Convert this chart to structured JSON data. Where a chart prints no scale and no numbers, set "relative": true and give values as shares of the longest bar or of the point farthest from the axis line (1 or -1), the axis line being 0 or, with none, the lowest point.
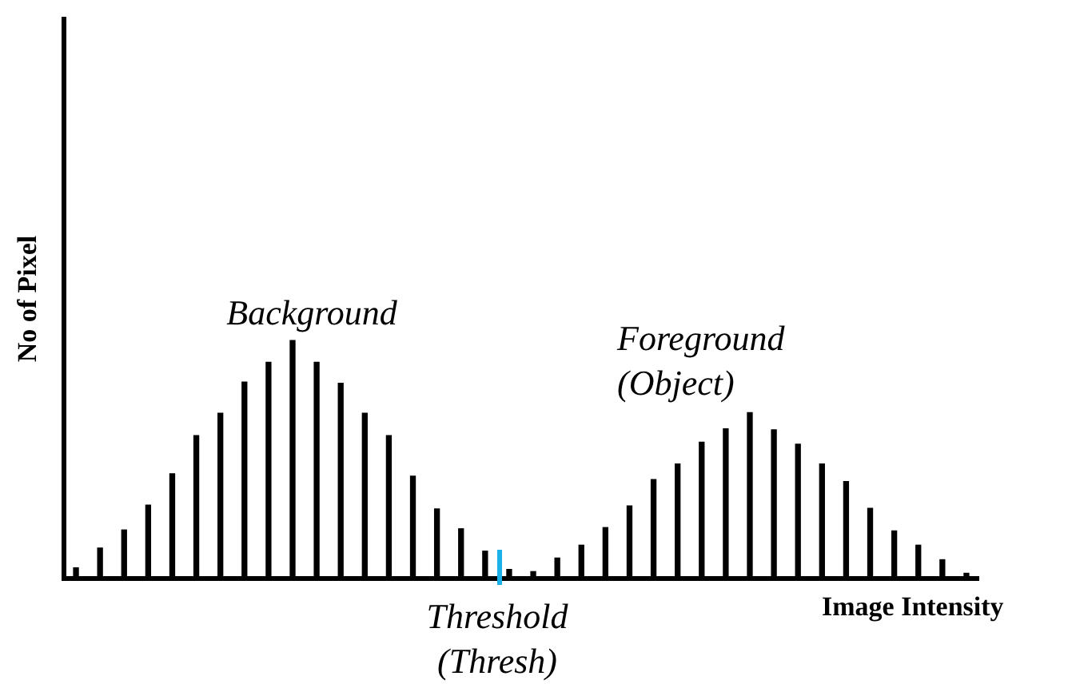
{
  "chart_data": {
    "type": "bar",
    "relative": true,
    "xlabel": "Image Intensity",
    "ylabel": "No of Pixel",
    "color": "#000000",
    "categories": [
      null,
      null,
      null,
      null,
      null,
      null,
      null,
      null,
      null,
      null,
      null,
      null,
      null,
      null,
      null,
      null,
      null,
      null,
      null,
      null,
      null,
      null,
      null,
      null,
      null,
      null,
      null,
      null,
      null,
      null,
      null,
      null,
      null,
      null,
      null,
      null,
      null,
      null
    ],
    "values": [
      0.045,
      0.128,
      0.204,
      0.308,
      0.44,
      0.6,
      0.694,
      0.825,
      0.908,
      1,
      0.908,
      0.82,
      0.694,
      0.6,
      0.43,
      0.292,
      0.209,
      0.115,
      0.038,
      0.029,
      0.086,
      0.14,
      0.214,
      0.305,
      0.416,
      0.481,
      0.573,
      0.629,
      0.697,
      0.625,
      0.564,
      0.481,
      0.407,
      0.295,
      0.2,
      0.14,
      0.079,
      0.022
    ],
    "annotations": [
      "Background",
      "Foreground\n(Object)",
      "Threshold\n(Thresh)"
    ],
    "grid": false,
    "legend": false
  }
}
